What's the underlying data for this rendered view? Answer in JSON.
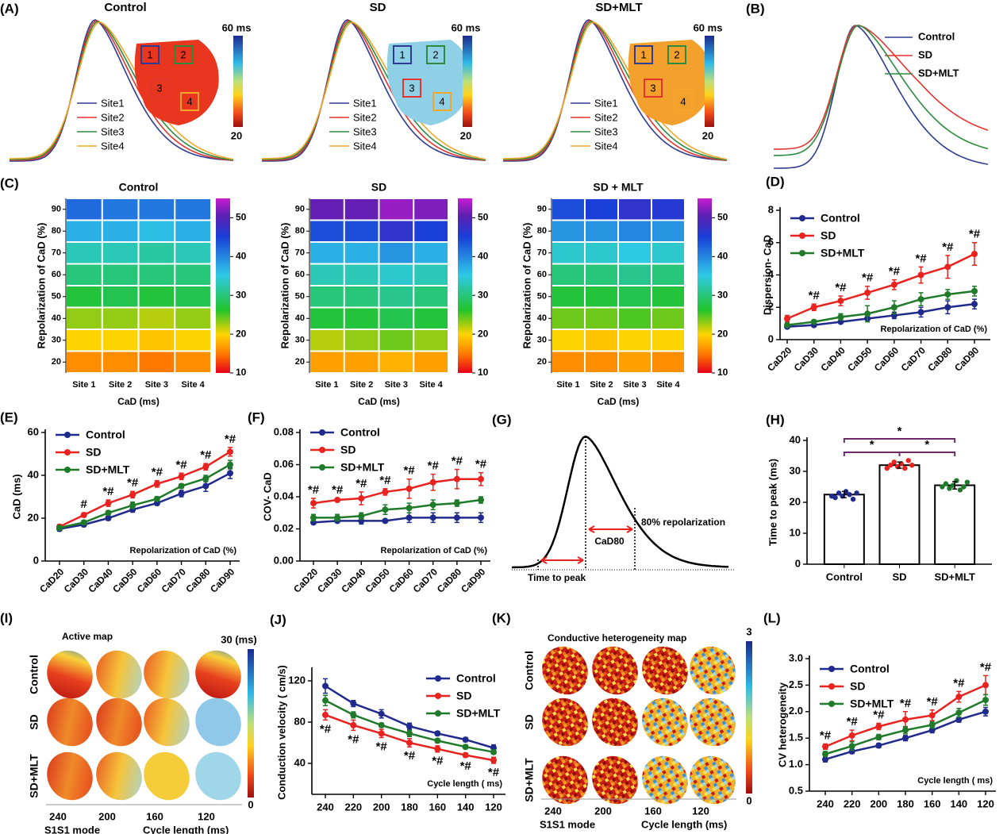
{
  "illustrations": {
    "A": {
      "label": "(A)",
      "colorbar_max": "60 ms",
      "colorbar_min": "20",
      "sites": [
        "Site1",
        "Site2",
        "Site3",
        "Site4"
      ],
      "site_colors": [
        "#2e3b93",
        "#e3342f",
        "#2e8b3e",
        "#f4a62a"
      ],
      "boxes": [
        "1",
        "2",
        "3",
        "4"
      ],
      "box_colors": [
        "#2e3b93",
        "#2e8b3e",
        "#e3342f",
        "#f4a62a"
      ],
      "panels": [
        {
          "title": "Control"
        },
        {
          "title": "SD"
        },
        {
          "title": "SD+MLT"
        }
      ]
    },
    "B": {
      "label": "(B)",
      "names": [
        "Control",
        "SD",
        "SD+MLT"
      ],
      "colors": [
        "#2e3b93",
        "#e3342f",
        "#2e8b3e"
      ]
    },
    "G": {
      "label": "(G)",
      "texts": [
        "CaD80",
        "80% repolarization",
        "Time to peak"
      ]
    },
    "I": {
      "label": "(I)",
      "title": "Active map",
      "colorbar_max": "30 (ms)",
      "colorbar_min": "0",
      "rows": [
        "Control",
        "SD",
        "SD+MLT"
      ],
      "columns": [
        240,
        200,
        160,
        120
      ],
      "mode": "S1S1 mode",
      "xlabel": "Cycle length (ms)"
    },
    "K": {
      "label": "(K)",
      "title": "Conductive heterogeneity map",
      "colorbar_max": "3",
      "colorbar_min": "0",
      "rows": [
        "Control",
        "SD",
        "SD+MLT"
      ],
      "columns": [
        240,
        200,
        160,
        120
      ],
      "mode": "S1S1 mode",
      "xlabel": "Cycle length (ms)"
    }
  },
  "chart_data": [
    {
      "type": "heatmap",
      "panel": "(C)",
      "title": "Control",
      "xlabel": "CaD (ms)",
      "ylabel": "Repolarization of CaD (%)",
      "x": [
        "Site 1",
        "Site 2",
        "Site 3",
        "Site 4"
      ],
      "y": [
        20,
        30,
        40,
        50,
        60,
        70,
        80,
        90
      ],
      "values": [
        [
          16,
          16,
          15,
          16
        ],
        [
          20,
          20,
          19,
          20
        ],
        [
          23,
          23,
          22,
          23
        ],
        [
          27,
          28,
          27,
          28
        ],
        [
          30,
          30,
          30,
          30
        ],
        [
          33,
          33,
          32,
          33
        ],
        [
          37,
          37,
          36,
          37
        ],
        [
          42,
          41,
          41,
          41
        ]
      ],
      "clim": [
        10,
        55
      ],
      "cticks": [
        10,
        20,
        30,
        40,
        50
      ]
    },
    {
      "type": "heatmap",
      "title": "SD",
      "xlabel": "CaD (ms)",
      "ylabel": "Repolarization of CaD (%)",
      "x": [
        "Site 1",
        "Site 2",
        "Site 3",
        "Site 4"
      ],
      "y": [
        20,
        30,
        40,
        50,
        60,
        70,
        80,
        90
      ],
      "values": [
        [
          17,
          17,
          18,
          17
        ],
        [
          22,
          23,
          24,
          23
        ],
        [
          27,
          27,
          28,
          27
        ],
        [
          30,
          30,
          31,
          30
        ],
        [
          33,
          33,
          34,
          33
        ],
        [
          37,
          37,
          39,
          37
        ],
        [
          44,
          44,
          47,
          45
        ],
        [
          51,
          51,
          53,
          52
        ]
      ],
      "clim": [
        10,
        55
      ],
      "cticks": [
        10,
        20,
        30,
        40,
        50
      ]
    },
    {
      "type": "heatmap",
      "title": "SD + MLT",
      "xlabel": "CaD (ms)",
      "ylabel": "Repolarization of CaD (%)",
      "x": [
        "Site 1",
        "Site 2",
        "Site 3",
        "Site 4"
      ],
      "y": [
        20,
        30,
        40,
        50,
        60,
        70,
        80,
        90
      ],
      "values": [
        [
          16,
          16,
          17,
          16
        ],
        [
          20,
          19,
          20,
          20
        ],
        [
          24,
          24,
          25,
          24
        ],
        [
          27,
          27,
          28,
          27
        ],
        [
          30,
          30,
          31,
          30
        ],
        [
          34,
          34,
          35,
          34
        ],
        [
          39,
          39,
          40,
          39
        ],
        [
          44,
          45,
          47,
          46
        ]
      ],
      "clim": [
        10,
        55
      ],
      "cticks": [
        10,
        20,
        30,
        40,
        50
      ]
    },
    {
      "type": "line",
      "panel": "(D)",
      "ylabel": "Dispersion- CaD",
      "xlabel": "Repolarization of CaD (%)",
      "categories": [
        "CaD20",
        "CaD30",
        "CaD40",
        "CaD50",
        "CaD60",
        "CaD70",
        "CaD80",
        "CaD90"
      ],
      "ylim": [
        0,
        8
      ],
      "yticks": [
        0,
        2,
        4,
        6,
        8
      ],
      "legend": "upper left",
      "series": [
        {
          "name": "Control",
          "color": "#1f2a8c",
          "values": [
            0.8,
            0.9,
            1.1,
            1.3,
            1.5,
            1.7,
            2.0,
            2.2
          ],
          "errors": [
            0.1,
            0.1,
            0.1,
            0.1,
            0.2,
            0.3,
            0.4,
            0.3
          ]
        },
        {
          "name": "SD",
          "color": "#e8231f",
          "values": [
            1.3,
            2.0,
            2.4,
            2.9,
            3.4,
            4.0,
            4.5,
            5.3
          ],
          "errors": [
            0.2,
            0.2,
            0.3,
            0.4,
            0.3,
            0.5,
            0.7,
            0.7
          ]
        },
        {
          "name": "SD+MLT",
          "color": "#1f7a2a",
          "values": [
            0.9,
            1.1,
            1.4,
            1.6,
            2.0,
            2.5,
            2.8,
            3.0
          ],
          "errors": [
            0.1,
            0.1,
            0.2,
            0.5,
            0.4,
            0.4,
            0.3,
            0.3
          ]
        }
      ],
      "annotations": [
        null,
        "*#",
        "*#",
        "*#",
        "*#",
        "*#",
        "*#",
        "*#"
      ]
    },
    {
      "type": "line",
      "panel": "(E)",
      "ylabel": "CaD (ms)",
      "xlabel": "Repolarization of CaD (%)",
      "categories": [
        "CaD20",
        "CaD30",
        "CaD40",
        "CaD50",
        "CaD60",
        "CaD70",
        "CaD80",
        "CaD90"
      ],
      "ylim": [
        0,
        60
      ],
      "yticks": [
        0,
        20,
        40,
        60
      ],
      "legend": "upper left",
      "series": [
        {
          "name": "Control",
          "color": "#1f2a8c",
          "values": [
            15,
            17,
            20,
            24,
            27,
            31.5,
            35,
            41
          ],
          "errors": [
            1,
            1,
            1,
            1.2,
            1,
            1.5,
            2.5,
            2.5
          ]
        },
        {
          "name": "SD",
          "color": "#e8231f",
          "values": [
            16,
            21.5,
            27,
            31,
            36,
            39.5,
            44,
            51
          ],
          "errors": [
            1,
            1,
            1.5,
            1.5,
            1.5,
            1.5,
            1.5,
            2
          ]
        },
        {
          "name": "SD+MLT",
          "color": "#1f7a2a",
          "values": [
            15.5,
            18,
            22.5,
            26,
            29,
            35,
            38.5,
            45
          ],
          "errors": [
            1,
            1,
            1,
            1.5,
            1,
            1,
            1.5,
            2
          ]
        }
      ],
      "annotations": [
        null,
        "#",
        "*#",
        "*#",
        "*#",
        "*#",
        "*#",
        "*#"
      ]
    },
    {
      "type": "line",
      "panel": "(F)",
      "ylabel": "COV- CaD",
      "xlabel": "Repolarization of CaD (%)",
      "categories": [
        "CaD20",
        "CaD30",
        "CaD40",
        "CaD50",
        "CaD60",
        "CaD70",
        "CaD80",
        "CaD90"
      ],
      "ylim": [
        0,
        0.08
      ],
      "yticks": [
        {
          "value": 0,
          "label": "0.00"
        },
        {
          "value": 0.02,
          "label": "0.02"
        },
        {
          "value": 0.04,
          "label": "0.04"
        },
        {
          "value": 0.06,
          "label": "0.06"
        },
        {
          "value": 0.08,
          "label": "0.08"
        }
      ],
      "legend": "upper left",
      "series": [
        {
          "name": "Control",
          "color": "#1f2a8c",
          "values": [
            0.024,
            0.025,
            0.025,
            0.025,
            0.027,
            0.027,
            0.027,
            0.027
          ],
          "errors": [
            0.001,
            0.001,
            0.002,
            0.001,
            0.003,
            0.003,
            0.003,
            0.003
          ]
        },
        {
          "name": "SD",
          "color": "#e8231f",
          "values": [
            0.036,
            0.038,
            0.039,
            0.043,
            0.045,
            0.049,
            0.051,
            0.051
          ],
          "errors": [
            0.003,
            0.001,
            0.004,
            0.002,
            0.006,
            0.005,
            0.006,
            0.004
          ]
        },
        {
          "name": "SD+MLT",
          "color": "#1f7a2a",
          "values": [
            0.027,
            0.027,
            0.028,
            0.032,
            0.033,
            0.035,
            0.036,
            0.038
          ],
          "errors": [
            0.002,
            0.002,
            0.002,
            0.003,
            0.003,
            0.003,
            0.002,
            0.002
          ]
        }
      ],
      "annotations": [
        "*#",
        "*#",
        "*#",
        "*#",
        "*#",
        "*#",
        "*#",
        "*#"
      ]
    },
    {
      "type": "bar",
      "panel": "(H)",
      "ylabel": "Time to peak (ms)",
      "categories": [
        "Control",
        "SD",
        "SD+MLT"
      ],
      "values": [
        22.5,
        32,
        25.5
      ],
      "errors": [
        1,
        1,
        1.2
      ],
      "colors": [
        "#1f2a8c",
        "#e8231f",
        "#1f7a2a"
      ],
      "points": [
        [
          22,
          21.5,
          23,
          22,
          23.5,
          22.5,
          21,
          23
        ],
        [
          31,
          32,
          33,
          31.5,
          32.5,
          31,
          33.5,
          32
        ],
        [
          25,
          26,
          24.5,
          25.5,
          27,
          24,
          25,
          26.5
        ]
      ],
      "ylim": [
        0,
        40
      ],
      "yticks": [
        0,
        10,
        20,
        30,
        40
      ],
      "bracket_color": "#6b2a6b",
      "significance": [
        {
          "pair": [
            "Control",
            "SD+MLT"
          ],
          "label": "*"
        },
        {
          "pair": [
            "Control",
            "SD"
          ],
          "label": "*"
        },
        {
          "pair": [
            "SD",
            "SD+MLT"
          ],
          "label": "*"
        }
      ]
    },
    {
      "type": "line",
      "panel": "(J)",
      "ylabel": "Conduction velocity ( cm/s)",
      "xlabel": "Cycle length ( ms)",
      "categories": [
        240,
        220,
        200,
        180,
        160,
        140,
        120
      ],
      "ylim": [
        10,
        130
      ],
      "yticks": [
        40,
        80,
        120
      ],
      "legend": "upper right",
      "series": [
        {
          "name": "Control",
          "color": "#1f2a8c",
          "values": [
            115,
            98,
            88,
            76,
            69,
            63,
            55
          ],
          "errors": [
            7,
            3,
            4,
            3,
            2,
            2,
            3
          ]
        },
        {
          "name": "SD",
          "color": "#e8231f",
          "values": [
            87,
            77,
            69,
            60,
            54,
            48,
            43
          ],
          "errors": [
            5,
            5,
            4,
            4,
            3,
            2,
            3
          ]
        },
        {
          "name": "SD+MLT",
          "color": "#1f7a2a",
          "values": [
            101,
            87,
            77,
            69,
            62,
            56,
            51
          ],
          "errors": [
            5,
            3,
            2,
            3,
            2,
            2,
            2
          ]
        }
      ],
      "annotations": [
        "*#",
        "*#",
        "*#",
        "*#",
        "*#",
        "*#",
        "*#"
      ],
      "annotation_below": true
    },
    {
      "type": "line",
      "panel": "(L)",
      "ylabel": "CV heterogeneity",
      "xlabel": "Cycle length ( ms)",
      "categories": [
        240,
        220,
        200,
        180,
        160,
        140,
        120
      ],
      "ylim": [
        0.5,
        3.0
      ],
      "yticks": [
        0.5,
        {
          "value": 1,
          "label": "1.0"
        },
        1.5,
        {
          "value": 2,
          "label": "2.0"
        },
        2.5,
        {
          "value": 3,
          "label": "3.0"
        }
      ],
      "legend": "upper left",
      "series": [
        {
          "name": "Control",
          "color": "#1f2a8c",
          "values": [
            1.1,
            1.25,
            1.36,
            1.5,
            1.65,
            1.85,
            2.0
          ],
          "errors": [
            0.05,
            0.04,
            0.04,
            0.05,
            0.05,
            0.05,
            0.08
          ]
        },
        {
          "name": "SD",
          "color": "#e8231f",
          "values": [
            1.34,
            1.55,
            1.72,
            1.85,
            1.93,
            2.28,
            2.5
          ],
          "errors": [
            0.05,
            0.1,
            0.06,
            0.15,
            0.1,
            0.1,
            0.18
          ]
        },
        {
          "name": "SD+MLT",
          "color": "#1f7a2a",
          "values": [
            1.2,
            1.35,
            1.52,
            1.65,
            1.75,
            1.98,
            2.22
          ],
          "errors": [
            0.05,
            0.08,
            0.05,
            0.07,
            0.06,
            0.08,
            0.1
          ]
        }
      ],
      "annotations": [
        "*#",
        "*#",
        "*#",
        "*#",
        "*#",
        "*#",
        "*#"
      ]
    }
  ]
}
